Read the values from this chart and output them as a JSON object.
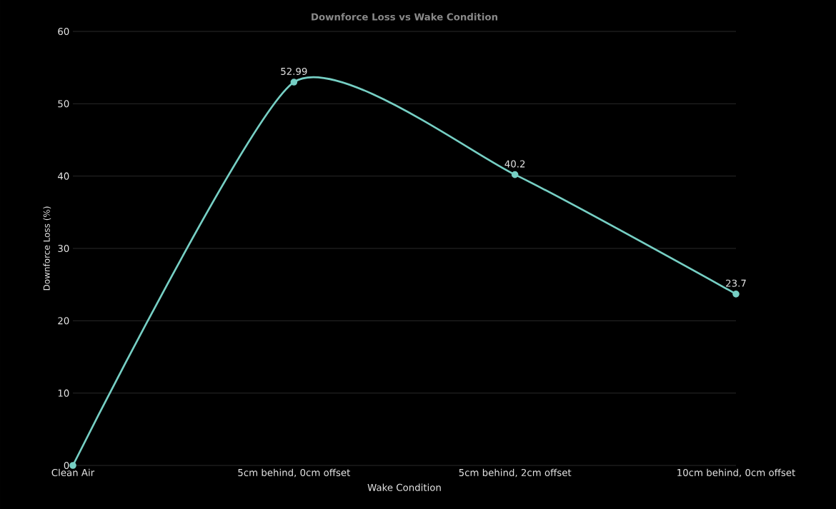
{
  "chart_data": {
    "type": "line",
    "title": "Downforce Loss vs Wake Condition",
    "xlabel": "Wake Condition",
    "ylabel": "Downforce Loss (%)",
    "categories": [
      "Clean Air",
      "5cm behind, 0cm offset",
      "5cm behind, 2cm offset",
      "10cm behind, 0cm offset"
    ],
    "values": [
      0,
      52.99,
      40.2,
      23.7
    ],
    "value_labels": [
      null,
      "52.99",
      "40.2",
      "23.7"
    ],
    "color": "#76cfc4",
    "ylim": [
      0,
      60
    ],
    "yticks": [
      0,
      10,
      20,
      30,
      40,
      50,
      60
    ],
    "grid": "y",
    "marker": "circle",
    "line_style": "solid"
  }
}
